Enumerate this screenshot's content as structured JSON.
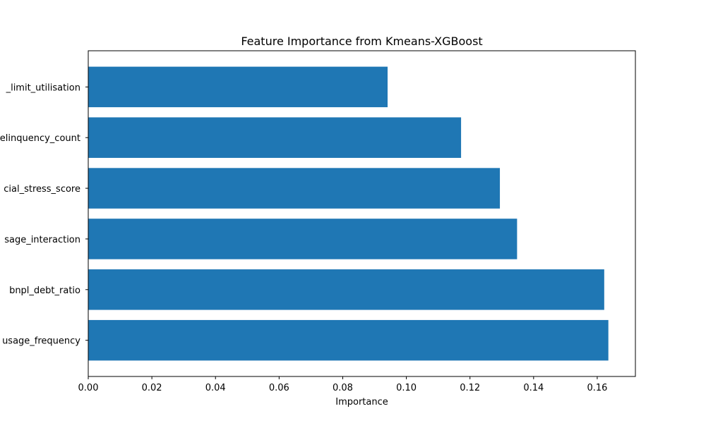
{
  "chart_data": {
    "type": "bar",
    "orientation": "horizontal",
    "title": "Feature Importance from Kmeans-XGBoost",
    "xlabel": "Importance",
    "ylabel": "",
    "categories": [
      "usage_frequency",
      "bnpl_debt_ratio",
      "sage_interaction",
      "cial_stress_score",
      "elinquency_count",
      "_limit_utilisation"
    ],
    "values": [
      0.1635,
      0.1622,
      0.1348,
      0.1294,
      0.1172,
      0.0941
    ],
    "xlim": [
      0,
      0.172
    ],
    "xticks": [
      0.0,
      0.02,
      0.04,
      0.06,
      0.08,
      0.1,
      0.12,
      0.14,
      0.16
    ],
    "xtick_labels": [
      "0.00",
      "0.02",
      "0.04",
      "0.06",
      "0.08",
      "0.10",
      "0.12",
      "0.14",
      "0.16"
    ],
    "grid": false,
    "bar_color": "#1f77b4"
  }
}
